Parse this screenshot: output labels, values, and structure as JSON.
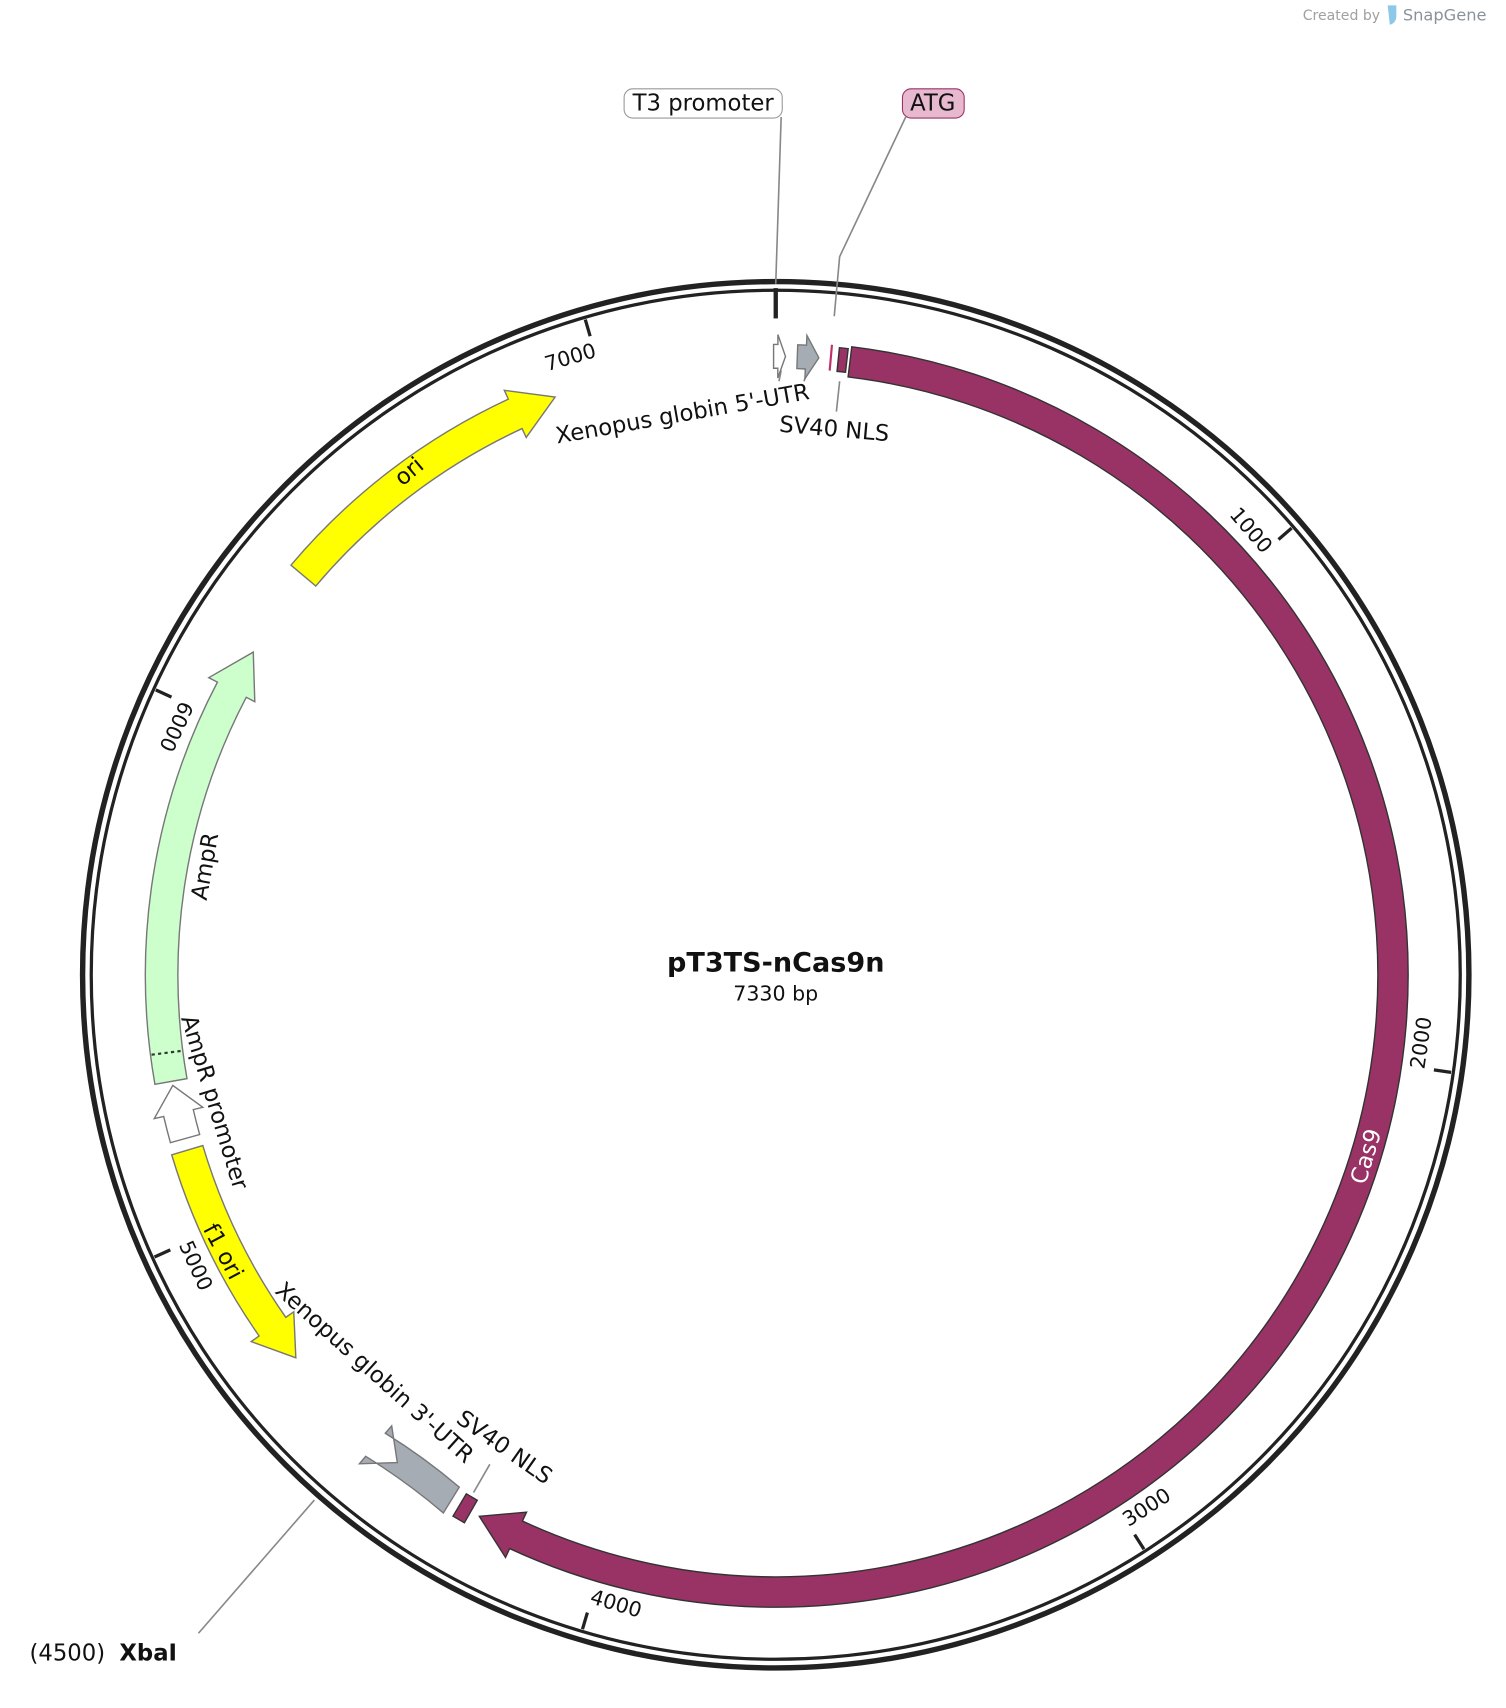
{
  "watermark": {
    "prefix": "Created by",
    "brand": "SnapGene"
  },
  "map": {
    "name": "pT3TS-nCas9n",
    "size": "7330 bp"
  },
  "ticks": [
    1000,
    2000,
    3000,
    4000,
    5000,
    6000,
    7000
  ],
  "features": [
    {
      "label": "Cas9"
    },
    {
      "label": "Xenopus globin 5'-UTR"
    },
    {
      "label": "SV40 NLS"
    },
    {
      "label": "ori"
    },
    {
      "label": "AmpR"
    },
    {
      "label": "AmpR promoter"
    },
    {
      "label": "f1 ori"
    },
    {
      "label": "Xenopus globin 3'-UTR"
    },
    {
      "label": "SV40 NLS"
    }
  ],
  "callouts": [
    {
      "label": "T3 promoter"
    },
    {
      "label": "ATG"
    }
  ],
  "sites": [
    {
      "position": "(4500)",
      "enzyme": "XbaI"
    }
  ]
}
